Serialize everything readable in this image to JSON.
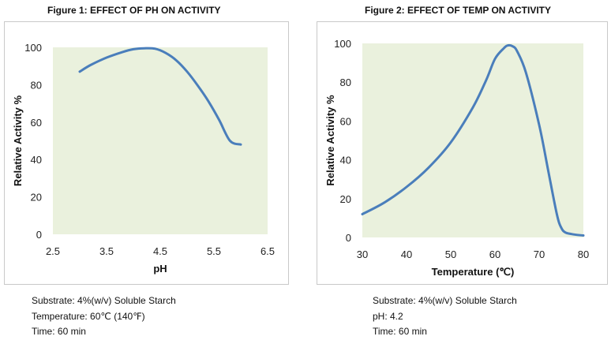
{
  "figures": [
    {
      "title": "Figure 1: EFFECT OF PH ON ACTIVITY",
      "notes": [
        "Substrate: 4%(w/v) Soluble Starch",
        "Temperature: 60℃ (140℉)",
        "Time: 60 min"
      ]
    },
    {
      "title": "Figure 2: EFFECT OF TEMP ON ACTIVITY",
      "notes": [
        "Substrate: 4%(w/v) Soluble Starch",
        "pH: 4.2",
        "Time: 60 min"
      ]
    }
  ],
  "chart_data": [
    {
      "type": "line",
      "title": "Figure 1: EFFECT OF PH ON ACTIVITY",
      "xlabel": "pH",
      "ylabel": "Relative Activity %",
      "xlim": [
        2.5,
        6.5
      ],
      "ylim": [
        0,
        100
      ],
      "xticks": [
        "2.5",
        "3.5",
        "4.5",
        "5.5",
        "6.5"
      ],
      "yticks": [
        "0",
        "20",
        "40",
        "60",
        "80",
        "100"
      ],
      "grid": false,
      "plot_background": "#eaf1dd",
      "line_color": "#4a7ebb",
      "series": [
        {
          "x": [
            3.0,
            3.2,
            3.5,
            3.8,
            4.0,
            4.2,
            4.4,
            4.6,
            4.8,
            5.0,
            5.2,
            5.4,
            5.6,
            5.8,
            6.0
          ],
          "values": [
            87,
            90.5,
            94.5,
            97.5,
            99,
            99.5,
            99.3,
            97,
            93,
            87,
            79.5,
            71,
            61,
            50,
            48
          ]
        }
      ]
    },
    {
      "type": "line",
      "title": "Figure 2: EFFECT OF TEMP ON ACTIVITY",
      "xlabel": "Temperature (℃)",
      "ylabel": "Relative Activity %",
      "xlim": [
        30,
        80
      ],
      "ylim": [
        0,
        100
      ],
      "xticks": [
        "30",
        "40",
        "50",
        "60",
        "70",
        "80"
      ],
      "yticks": [
        "0",
        "20",
        "40",
        "60",
        "80",
        "100"
      ],
      "grid": false,
      "plot_background": "#eaf1dd",
      "line_color": "#4a7ebb",
      "series": [
        {
          "x": [
            30,
            35,
            40,
            45,
            50,
            55,
            58,
            60,
            62,
            63,
            64,
            65,
            67,
            70,
            72,
            74,
            75,
            76,
            78,
            80
          ],
          "values": [
            12,
            18,
            26,
            36,
            49,
            67,
            81,
            92,
            97.5,
            99,
            98.5,
            96,
            85,
            58,
            35,
            12,
            5,
            2.5,
            1.5,
            1
          ]
        }
      ]
    }
  ]
}
